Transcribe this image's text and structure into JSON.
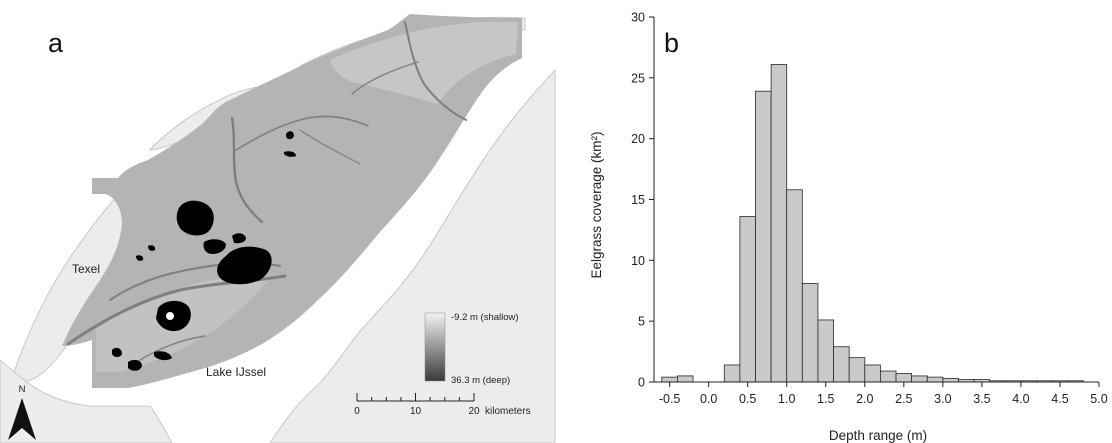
{
  "map": {
    "panel_label": "a",
    "places": {
      "texel": "Texel",
      "lake": "Lake IJssel"
    },
    "legend": {
      "shallow_label": "-9.2 m (shallow)",
      "deep_label": "36.3 m (deep)",
      "colors": {
        "shallow": "#f2f2f2",
        "deep": "#3a3a3a"
      }
    },
    "scale": {
      "ticks": [
        "0",
        "10",
        "20"
      ],
      "unit": "kilometers"
    },
    "north": "N",
    "colors": {
      "land": "#ececec",
      "sea": "#ffffff",
      "bathymetry": "#b4b4b4",
      "eelgrass": "#000000"
    }
  },
  "chart_data": {
    "type": "bar",
    "panel_label": "b",
    "title": "",
    "xlabel": "Depth range (m)",
    "ylabel": "Eelgrass coverage (km²)",
    "xlim": [
      -0.7,
      5.0
    ],
    "ylim": [
      0,
      30
    ],
    "xticks": [
      "-0.5",
      "0.0",
      "0.5",
      "1.0",
      "1.5",
      "2.0",
      "2.5",
      "3.0",
      "3.5",
      "4.0",
      "4.5",
      "5.0"
    ],
    "yticks": [
      "0",
      "5",
      "10",
      "15",
      "20",
      "25",
      "30"
    ],
    "bin_width": 0.2,
    "bins": [
      {
        "start": -0.6,
        "value": 0.4
      },
      {
        "start": -0.4,
        "value": 0.5
      },
      {
        "start": -0.2,
        "value": 0.0
      },
      {
        "start": 0.0,
        "value": 0.0
      },
      {
        "start": 0.2,
        "value": 1.4
      },
      {
        "start": 0.4,
        "value": 13.6
      },
      {
        "start": 0.6,
        "value": 23.9
      },
      {
        "start": 0.8,
        "value": 26.1
      },
      {
        "start": 1.0,
        "value": 15.8
      },
      {
        "start": 1.2,
        "value": 8.1
      },
      {
        "start": 1.4,
        "value": 5.1
      },
      {
        "start": 1.6,
        "value": 2.9
      },
      {
        "start": 1.8,
        "value": 2.0
      },
      {
        "start": 2.0,
        "value": 1.4
      },
      {
        "start": 2.2,
        "value": 0.9
      },
      {
        "start": 2.4,
        "value": 0.7
      },
      {
        "start": 2.6,
        "value": 0.5
      },
      {
        "start": 2.8,
        "value": 0.4
      },
      {
        "start": 3.0,
        "value": 0.3
      },
      {
        "start": 3.2,
        "value": 0.2
      },
      {
        "start": 3.4,
        "value": 0.2
      },
      {
        "start": 3.6,
        "value": 0.1
      },
      {
        "start": 3.8,
        "value": 0.1
      },
      {
        "start": 4.0,
        "value": 0.1
      },
      {
        "start": 4.2,
        "value": 0.1
      },
      {
        "start": 4.4,
        "value": 0.1
      },
      {
        "start": 4.6,
        "value": 0.1
      }
    ],
    "colors": {
      "bar_fill": "#c9c9cc",
      "bar_stroke": "#2a2a2a",
      "axis": "#222222"
    },
    "grid": false,
    "legend": "none"
  }
}
